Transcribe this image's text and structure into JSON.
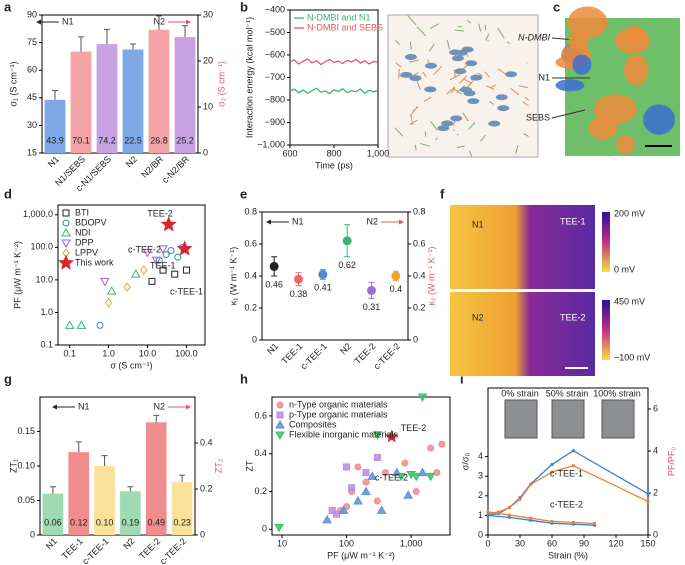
{
  "panel_labels": [
    "a",
    "b",
    "c",
    "d",
    "e",
    "f",
    "g",
    "h",
    "i"
  ],
  "images": {
    "c": [
      "N-DMBI",
      "N1",
      "SEBS"
    ],
    "f": {
      "top": [
        "N1",
        "TEE-1"
      ],
      "top_scale": [
        "200 mV",
        "0 mV"
      ],
      "bottom": [
        "N2",
        "TEE-2"
      ],
      "bottom_scale": [
        "450 mV",
        "−100 mV"
      ]
    }
  },
  "chart_data": [
    {
      "type": "bar",
      "ylabel": "σ₁ (S cm⁻¹)",
      "y2label": "σ₂ (S cm⁻¹)",
      "categories": [
        "N1",
        "N1/SEBS",
        "c-N1/SEBS",
        "N2",
        "N2/BR",
        "c-N2/BR"
      ],
      "series": [
        {
          "values": [
            43.9,
            70.1,
            74.2,
            null,
            null,
            null
          ],
          "errors": [
            5,
            8,
            8,
            null,
            null,
            null
          ],
          "colors": [
            "#7fa9e6",
            "#f4a3a7",
            "#c8a2e3",
            null,
            null,
            null
          ]
        },
        {
          "axis": "y2",
          "values": [
            null,
            null,
            null,
            22.5,
            26.8,
            25.2
          ],
          "errors": [
            null,
            null,
            null,
            1.2,
            3,
            2.5
          ],
          "colors": [
            null,
            null,
            null,
            "#7fa9e6",
            "#f4a3a7",
            "#c8a2e3"
          ]
        }
      ],
      "ylim": [
        15,
        90
      ],
      "yticks": [
        15,
        30,
        45,
        60,
        75,
        90
      ],
      "y2lim": [
        0,
        30
      ],
      "y2ticks": [
        0,
        10,
        20,
        30
      ],
      "annotations": [
        "N1",
        "N2"
      ]
    },
    {
      "type": "line",
      "xlabel": "Time (ps)",
      "ylabel": "Interaction energy (kcal mol⁻¹)",
      "x": [
        600,
        620,
        640,
        660,
        680,
        700,
        720,
        740,
        760,
        780,
        800,
        820,
        840,
        860,
        880,
        900,
        920,
        940,
        960,
        980,
        1000
      ],
      "series": [
        {
          "name": "N-DMBI and N1",
          "color": "#3cb371",
          "values": [
            -760,
            -752,
            -768,
            -755,
            -770,
            -758,
            -748,
            -765,
            -760,
            -772,
            -754,
            -762,
            -750,
            -767,
            -759,
            -763,
            -751,
            -770,
            -757,
            -764,
            -756
          ]
        },
        {
          "name": "N-DMBI and SEBS",
          "color": "#e8555c",
          "values": [
            -630,
            -622,
            -640,
            -628,
            -618,
            -635,
            -625,
            -642,
            -630,
            -620,
            -633,
            -627,
            -638,
            -624,
            -631,
            -619,
            -636,
            -626,
            -640,
            -629,
            -632
          ]
        }
      ],
      "xlim": [
        600,
        1000
      ],
      "xticks": [
        600,
        800,
        {
          "value": 1000,
          "label": "1,000"
        }
      ],
      "ylim": [
        -1000,
        -400
      ],
      "yticks": [
        {
          "value": -1000,
          "label": "−1,000"
        },
        {
          "value": -900,
          "label": "−900"
        },
        {
          "value": -800,
          "label": "−800"
        },
        {
          "value": -700,
          "label": "−700"
        },
        {
          "value": -600,
          "label": "−600"
        },
        {
          "value": -500,
          "label": "−500"
        },
        {
          "value": -400,
          "label": "−400"
        }
      ],
      "legend": "upper left"
    },
    {
      "type": "scatter",
      "xlabel": "σ (S cm⁻¹)",
      "ylabel": "PF (μW m⁻¹ K⁻²)",
      "xlog": true,
      "ylog": true,
      "series": [
        {
          "name": "BTI",
          "color": "#222222",
          "marker": "square",
          "filled": false,
          "x": [
            13,
            25,
            50,
            100
          ],
          "values": [
            9,
            20,
            15,
            20
          ]
        },
        {
          "name": "BDOPV",
          "color": "#3b7dd8",
          "marker": "circle",
          "filled": false,
          "x": [
            0.6,
            20,
            30,
            40,
            60,
            80
          ],
          "values": [
            0.4,
            40,
            60,
            80,
            50,
            100
          ]
        },
        {
          "name": "NDI",
          "color": "#3cb371",
          "marker": "triangle",
          "filled": false,
          "x": [
            0.1,
            0.2,
            1.2,
            5
          ],
          "values": [
            0.4,
            0.4,
            4.5,
            15
          ]
        },
        {
          "name": "DPP",
          "color": "#a05fd0",
          "marker": "triangle-down",
          "filled": false,
          "x": [
            0.8,
            10,
            17,
            25
          ],
          "values": [
            9,
            70,
            40,
            90
          ]
        },
        {
          "name": "LPPV",
          "color": "#f0a030",
          "marker": "diamond",
          "filled": false,
          "x": [
            1,
            3,
            8
          ],
          "values": [
            2,
            6,
            20
          ]
        },
        {
          "name": "This work",
          "color": "#d8262e",
          "marker": "star",
          "filled": true,
          "x": [
            35,
            90
          ],
          "values": [
            500,
            90
          ]
        }
      ],
      "xlim": [
        0.05,
        300
      ],
      "xticks": [
        0.1,
        {
          "value": 1,
          "label": "1.0"
        },
        {
          "value": 10,
          "label": "10.0"
        },
        {
          "value": 100,
          "label": "100.0"
        }
      ],
      "ylim": [
        0.1,
        2000
      ],
      "yticks": [
        0.1,
        {
          "value": 1,
          "label": "1.0"
        },
        {
          "value": 10,
          "label": "10.0"
        },
        {
          "value": 100,
          "label": "100.0"
        },
        {
          "value": 1000,
          "label": "1,000.0"
        }
      ],
      "legend": "upper left",
      "annotations": [
        "TEE-2",
        "c-TEE-2",
        "TEE-1",
        "c-TEE-1"
      ]
    },
    {
      "type": "dot",
      "ylabel": "κ₁ (W m⁻¹ K⁻¹)",
      "y2label": "κ₂ (W m⁻¹ K⁻¹)",
      "categories": [
        "N1",
        "TEE-1",
        "c-TEE-1",
        "N2",
        "TEE-2",
        "c-TEE-2"
      ],
      "series": [
        {
          "values": [
            0.46,
            0.38,
            0.41,
            null,
            null,
            null
          ],
          "errors": [
            0.06,
            0.04,
            0.03,
            null,
            null,
            null
          ],
          "colors": [
            "#222222",
            "#e8686e",
            "#4a8ad8",
            null,
            null,
            null
          ]
        },
        {
          "axis": "y2",
          "values": [
            null,
            null,
            null,
            0.62,
            0.31,
            0.4
          ],
          "errors": [
            null,
            null,
            null,
            0.1,
            0.05,
            0.03
          ],
          "colors": [
            null,
            null,
            null,
            "#3cb371",
            "#9b6fd6",
            "#f0a030"
          ]
        }
      ],
      "ylim": [
        0,
        0.8
      ],
      "yticks": [
        0,
        0.2,
        0.4,
        0.6,
        0.8
      ],
      "y2lim": [
        0,
        0.8
      ],
      "y2ticks": [
        0,
        0.2,
        0.4,
        0.6,
        0.8
      ],
      "annotations": [
        "N1",
        "N2"
      ]
    },
    {
      "type": "bar",
      "ylabel": "ZT₁",
      "y2label": "ZT₂",
      "categories": [
        "N1",
        "TEE-1",
        "c-TEE-1",
        "N2",
        "TEE-2",
        "c-TEE-2"
      ],
      "series": [
        {
          "values": [
            0.06,
            0.12,
            0.1,
            null,
            null,
            null
          ],
          "value_labels": [
            "0.06",
            "0.12",
            "0.10",
            null,
            null,
            null
          ],
          "errors": [
            0.01,
            0.015,
            0.015,
            null,
            null,
            null
          ],
          "colors": [
            "#9edbb0",
            "#f18c8e",
            "#fbe29b",
            null,
            null,
            null
          ]
        },
        {
          "axis": "y2",
          "values": [
            null,
            null,
            null,
            0.19,
            0.49,
            0.23
          ],
          "value_labels": [
            null,
            null,
            null,
            "0.19",
            "0.49",
            "0.23"
          ],
          "errors": [
            null,
            null,
            null,
            0.02,
            0.03,
            0.03
          ],
          "colors": [
            null,
            null,
            null,
            "#9edbb0",
            "#f18c8e",
            "#fbe29b"
          ]
        }
      ],
      "ylim": [
        0,
        0.2
      ],
      "yticks": [
        0,
        0.05,
        {
          "value": 0.1,
          "label": "0.10"
        },
        0.15
      ],
      "y2lim": [
        0,
        0.6
      ],
      "y2ticks": [
        0,
        0.2,
        0.4
      ],
      "annotations": [
        "N1",
        "N2"
      ]
    },
    {
      "type": "scatter",
      "xlabel": "PF (μW m⁻¹ K⁻²)",
      "ylabel": "ZT",
      "xlog": true,
      "series": [
        {
          "name": "n-Type organic materials",
          "color": "#f08b8b",
          "marker": "circle",
          "filled": true,
          "x": [
            80,
            100,
            120,
            150,
            200,
            300,
            400,
            800,
            1200,
            2000,
            3000,
            2500
          ],
          "values": [
            0.1,
            0.12,
            0.2,
            0.33,
            0.25,
            0.15,
            0.3,
            0.35,
            0.2,
            0.43,
            0.45,
            0.3
          ]
        },
        {
          "name": "p-Type organic materials",
          "color": "#b88ce0",
          "marker": "square",
          "filled": true,
          "x": [
            60,
            70,
            100,
            120,
            200,
            300
          ],
          "values": [
            0.1,
            0.08,
            0.33,
            0.22,
            0.3,
            0.38
          ]
        },
        {
          "name": "Composites",
          "color": "#5b8fd9",
          "marker": "triangle",
          "filled": true,
          "x": [
            50,
            90,
            150,
            200,
            250,
            350,
            600,
            900,
            1500
          ],
          "values": [
            0.05,
            0.1,
            0.15,
            0.2,
            0.28,
            0.1,
            0.3,
            0.18,
            0.3
          ]
        },
        {
          "name": "Flexible inorganic materials",
          "color": "#3cbf6b",
          "marker": "triangle-down",
          "filled": true,
          "x": [
            9,
            300,
            700,
            1000,
            1200,
            1500,
            2000
          ],
          "values": [
            0.01,
            0.5,
            0.28,
            0.29,
            0.28,
            0.7,
            0.28
          ]
        }
      ],
      "highlight": {
        "label": "TEE-2",
        "x": 500,
        "y": 0.49,
        "color": "#d8262e"
      },
      "xlim": [
        7,
        4000
      ],
      "xticks": [
        10,
        100,
        {
          "value": 1000,
          "label": "1,000"
        }
      ],
      "ylim": [
        -0.03,
        0.7
      ],
      "yticks": [
        0,
        0.2,
        0.4,
        0.6
      ],
      "legend": "upper left",
      "annotations": [
        "c-TEE-2"
      ]
    },
    {
      "type": "line",
      "xlabel": "Strain (%)",
      "ylabel": "σ/σ₀",
      "y2label": "PF/PF₀",
      "markers": true,
      "series": [
        {
          "color": "#3b7dd8",
          "x": [
            0,
            10,
            20,
            30,
            40,
            60,
            80,
            150
          ],
          "values": [
            1,
            1.1,
            1.4,
            1.9,
            2.6,
            3.6,
            4.3,
            2.1
          ]
        },
        {
          "color": "#f08030",
          "axis": "y2",
          "x": [
            0,
            10,
            20,
            30,
            40,
            60,
            80,
            150
          ],
          "values": [
            1,
            1.1,
            1.3,
            1.7,
            2.4,
            3,
            3.3,
            1.6
          ]
        },
        {
          "color": "#3b7dd8",
          "x": [
            0,
            20,
            40,
            60,
            80,
            100
          ],
          "values": [
            1,
            0.9,
            0.75,
            0.6,
            0.55,
            0.5
          ]
        },
        {
          "color": "#f08030",
          "axis": "y2",
          "x": [
            0,
            20,
            40,
            60,
            80,
            100
          ],
          "values": [
            1.1,
            0.95,
            0.8,
            0.65,
            0.6,
            0.55
          ]
        }
      ],
      "xlim": [
        0,
        150
      ],
      "xticks": [
        0,
        30,
        60,
        90,
        120,
        150
      ],
      "ylim": [
        0,
        7.5
      ],
      "yticks": [
        0,
        1,
        2,
        3,
        4
      ],
      "y2lim": [
        0,
        7
      ],
      "y2ticks": [
        0,
        2,
        4,
        6
      ],
      "annotations": [
        "0% strain",
        "50% strain",
        "100% strain",
        "c-TEE-1",
        "c-TEE-2"
      ]
    }
  ]
}
